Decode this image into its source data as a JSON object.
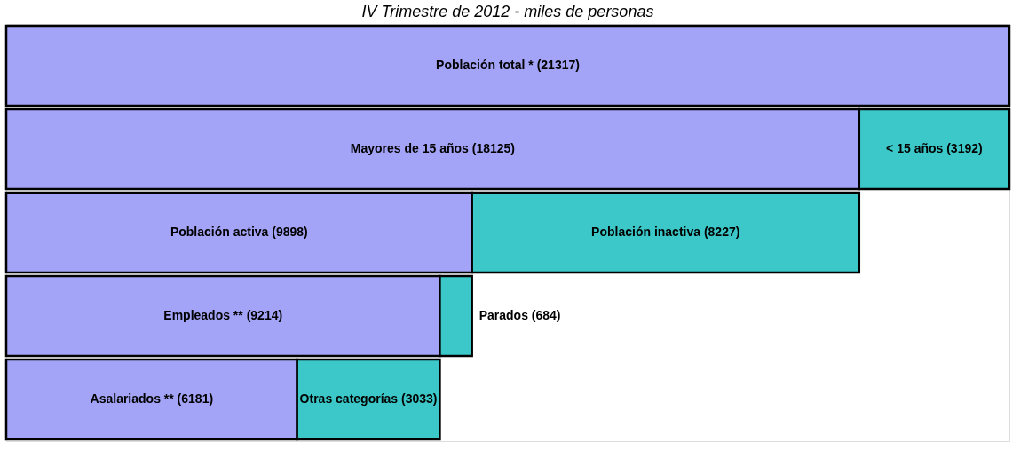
{
  "chart_data": {
    "type": "bar",
    "orientation": "horizontal",
    "stacked": true,
    "title": "IV Trimestre de 2012 - miles de personas",
    "categories": [
      null,
      null,
      null,
      null,
      null
    ],
    "series": [
      {
        "color": "#a3a3f7",
        "values": [
          21317,
          18125,
          9898,
          9214,
          6181
        ],
        "value_labels": [
          "Población total * (21317)",
          "Mayores de 15 años (18125)",
          "Población activa (9898)",
          "Empleados ** (9214)",
          "Asalariados ** (6181)"
        ]
      },
      {
        "color": "#3cc8c8",
        "values": [
          null,
          3192,
          8227,
          684,
          3033
        ],
        "value_labels": [
          null,
          "< 15 años (3192)",
          "Población inactiva (8227)",
          "Parados (684)",
          "Otras categorías (3033)"
        ]
      }
    ],
    "tick_labels": false,
    "grid": false
  }
}
